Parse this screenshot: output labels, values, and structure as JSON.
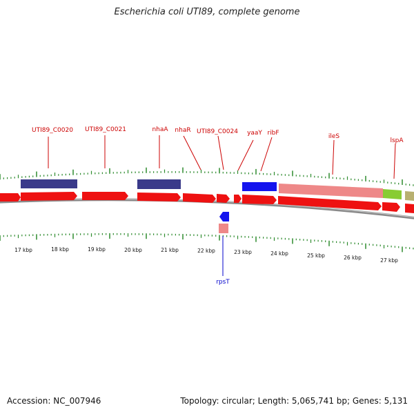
{
  "title": "Escherichia coli UTI89, complete genome",
  "footer": {
    "accession": "Accession: NC_007946",
    "summary": "Topology: circular; Length: 5,065,741 bp; Genes: 5,131"
  },
  "colors": {
    "cds": "#ee1111",
    "cds_blue": "#2222ee",
    "dark_blue": "#3a3a8a",
    "pink": "#ee8888",
    "light_green": "#99e633",
    "olive": "#b8b070",
    "tick_green": "#2e8b2e",
    "label_red": "#cc0000",
    "label_blue": "#0000cc",
    "backbone": "#8a8a8a"
  },
  "scale_labels": [
    "17 kbp",
    "18 kbp",
    "19 kbp",
    "20 kbp",
    "21 kbp",
    "22 kbp",
    "23 kbp",
    "24 kbp",
    "25 kbp",
    "26 kbp",
    "27 kbp"
  ],
  "gene_labels": [
    {
      "text": "UTI89_C0020",
      "strand": "forward"
    },
    {
      "text": "UTI89_C0021",
      "strand": "forward"
    },
    {
      "text": "nhaA",
      "strand": "forward"
    },
    {
      "text": "nhaR",
      "strand": "forward"
    },
    {
      "text": "UTI89_C0024",
      "strand": "forward"
    },
    {
      "text": "yaaY",
      "strand": "forward"
    },
    {
      "text": "ribF",
      "strand": "forward"
    },
    {
      "text": "ileS",
      "strand": "forward"
    },
    {
      "text": "lspA",
      "strand": "forward"
    },
    {
      "text": "rpsT",
      "strand": "reverse"
    }
  ]
}
